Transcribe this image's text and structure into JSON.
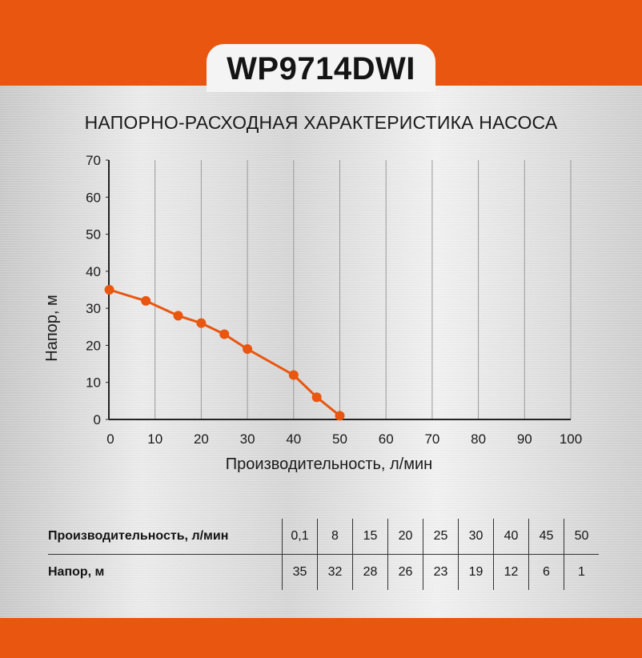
{
  "header": {
    "model": "WP9714DWI",
    "subtitle": "НАПОРНО-РАСХОДНАЯ ХАРАКТЕРИСТИКА НАСОСА"
  },
  "colors": {
    "brand": "#e8560f",
    "curve": "#e8560f",
    "axis": "#222222",
    "grid": "#9a9a9a"
  },
  "chart_data": {
    "type": "line",
    "xlabel": "Производительность, л/мин",
    "ylabel": "Напор, м",
    "xlim": [
      0,
      100
    ],
    "ylim": [
      0,
      70
    ],
    "xticks": [
      0,
      10,
      20,
      30,
      40,
      50,
      60,
      70,
      80,
      90,
      100
    ],
    "yticks": [
      0,
      10,
      20,
      30,
      40,
      50,
      60,
      70
    ],
    "grid": "vertical",
    "series": [
      {
        "x": [
          0.1,
          8,
          15,
          20,
          25,
          30,
          40,
          45,
          50
        ],
        "y": [
          35,
          32,
          28,
          26,
          23,
          19,
          12,
          6,
          1
        ]
      }
    ]
  },
  "table": {
    "rows": [
      {
        "label": "Производительность, л/мин",
        "values": [
          "0,1",
          "8",
          "15",
          "20",
          "25",
          "30",
          "40",
          "45",
          "50"
        ]
      },
      {
        "label": "Напор, м",
        "values": [
          "35",
          "32",
          "28",
          "26",
          "23",
          "19",
          "12",
          "6",
          "1"
        ]
      }
    ]
  }
}
